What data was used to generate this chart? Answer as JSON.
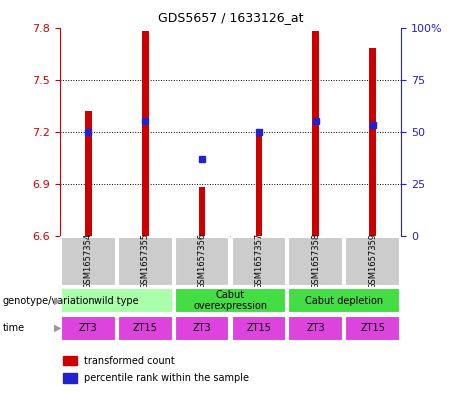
{
  "title": "GDS5657 / 1633126_at",
  "samples": [
    "GSM1657354",
    "GSM1657355",
    "GSM1657356",
    "GSM1657357",
    "GSM1657358",
    "GSM1657359"
  ],
  "transformed_counts": [
    7.32,
    7.78,
    6.88,
    7.18,
    7.78,
    7.68
  ],
  "percentile_ranks": [
    50,
    55,
    37,
    50,
    55,
    53
  ],
  "ylim_left": [
    6.6,
    7.8
  ],
  "ylim_right": [
    0,
    100
  ],
  "yticks_left": [
    6.6,
    6.9,
    7.2,
    7.5,
    7.8
  ],
  "yticks_right": [
    0,
    25,
    50,
    75,
    100
  ],
  "bar_color": "#cc0000",
  "dot_color": "#2222cc",
  "bar_width": 0.12,
  "genotype_groups": [
    {
      "label": "wild type",
      "start": 0,
      "end": 2,
      "color": "#aaffaa"
    },
    {
      "label": "Cabut\noverexpression",
      "start": 2,
      "end": 4,
      "color": "#44dd44"
    },
    {
      "label": "Cabut depletion",
      "start": 4,
      "end": 6,
      "color": "#44dd44"
    }
  ],
  "time_labels": [
    "ZT3",
    "ZT15",
    "ZT3",
    "ZT15",
    "ZT3",
    "ZT15"
  ],
  "time_color": "#dd44dd",
  "gsm_bg_color": "#cccccc",
  "left_axis_color": "#cc0000",
  "right_axis_color": "#2222cc",
  "grid_color": "#000000"
}
